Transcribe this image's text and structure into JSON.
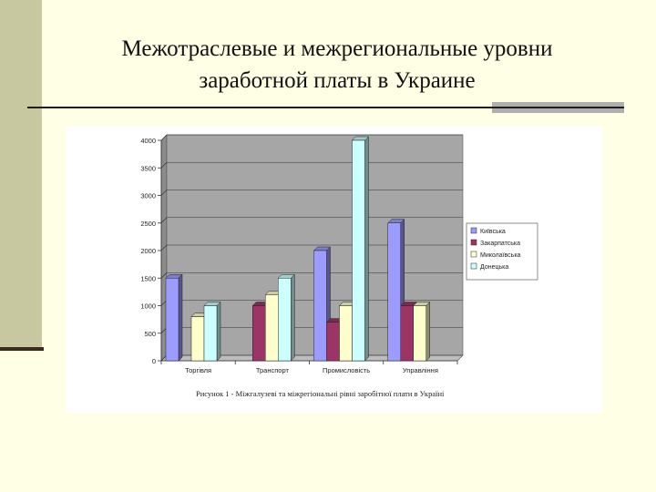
{
  "slide": {
    "title_line1": "Межотраслевые и межрегиональные уровни",
    "title_line2": "заработной платы в Украине",
    "caption": "Рисунок 1 - Міжгалузеві та міжрегіональні рівні заробітної плати в Україні"
  },
  "colors": {
    "background": "#FFFFE6",
    "plot_area": "#A6A6A6",
    "series": [
      "#9C9CFF",
      "#9C3466",
      "#FFFFCC",
      "#CCFFFF"
    ]
  },
  "chart_data": {
    "type": "bar",
    "categories": [
      "Торгівля",
      "Транспорт",
      "Промисловість",
      "Управління"
    ],
    "series": [
      {
        "name": "Київська",
        "values": [
          1500,
          0,
          2000,
          2500
        ]
      },
      {
        "name": "Закарпатська",
        "values": [
          0,
          1000,
          700,
          1000
        ]
      },
      {
        "name": "Миколаївська",
        "values": [
          800,
          1200,
          1000,
          1000
        ]
      },
      {
        "name": "Донецька",
        "values": [
          1000,
          1500,
          4000,
          0
        ]
      }
    ],
    "yticks": [
      "0",
      "500",
      "1000",
      "1500",
      "2000",
      "2500",
      "3000",
      "3500",
      "4000"
    ],
    "ylim": [
      0,
      4000
    ],
    "grid": true,
    "legend_position": "right",
    "bar_style": "3d"
  }
}
